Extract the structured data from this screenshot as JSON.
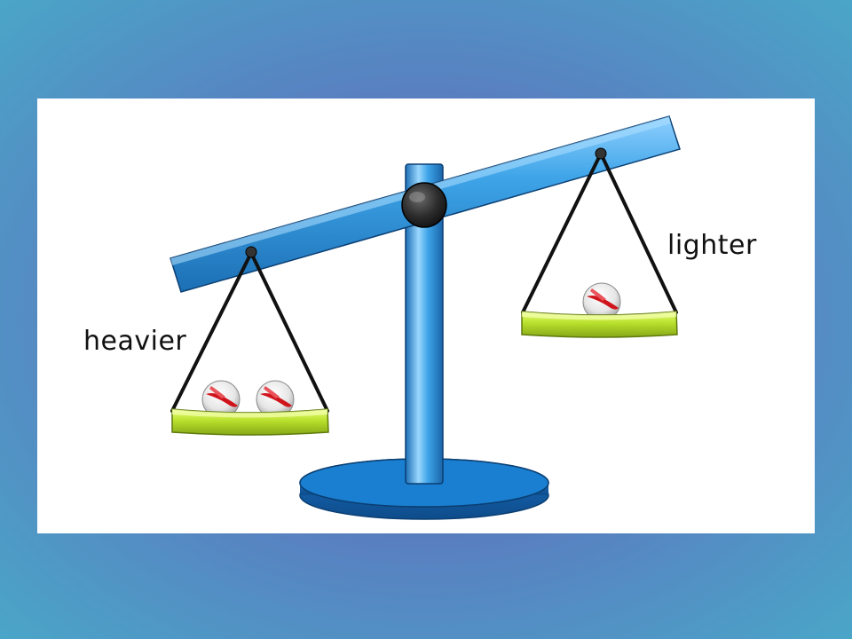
{
  "labels": {
    "heavier": "heavier",
    "lighter": "lighter"
  },
  "pans": {
    "left": {
      "marble_count": 2
    },
    "right": {
      "marble_count": 1
    }
  },
  "colors": {
    "beam": "#3aa0e0",
    "base": "#1a7fd0",
    "pan": "#b8e02c",
    "marble_stripe": "#d0141c"
  }
}
